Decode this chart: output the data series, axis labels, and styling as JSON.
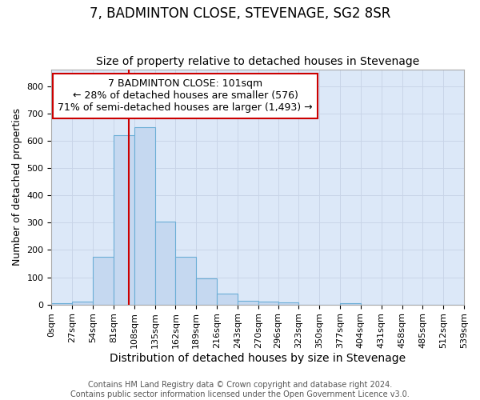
{
  "title": "7, BADMINTON CLOSE, STEVENAGE, SG2 8SR",
  "subtitle": "Size of property relative to detached houses in Stevenage",
  "xlabel": "Distribution of detached houses by size in Stevenage",
  "ylabel": "Number of detached properties",
  "footer_line1": "Contains HM Land Registry data © Crown copyright and database right 2024.",
  "footer_line2": "Contains public sector information licensed under the Open Government Licence v3.0.",
  "bar_edges": [
    0,
    27,
    54,
    81,
    108,
    135,
    162,
    189,
    216,
    243,
    270,
    296,
    323,
    350,
    377,
    404,
    431,
    458,
    485,
    512,
    539
  ],
  "bar_heights": [
    5,
    12,
    175,
    620,
    650,
    305,
    175,
    97,
    40,
    15,
    10,
    8,
    0,
    0,
    5,
    0,
    0,
    0,
    0,
    0
  ],
  "bar_color": "#c5d8f0",
  "bar_edgecolor": "#6baed6",
  "bar_linewidth": 0.8,
  "vline_x": 101,
  "vline_color": "#cc0000",
  "annotation_line1": "7 BADMINTON CLOSE: 101sqm",
  "annotation_line2": "← 28% of detached houses are smaller (576)",
  "annotation_line3": "71% of semi-detached houses are larger (1,493) →",
  "annotation_box_color": "#cc0000",
  "ylim": [
    0,
    860
  ],
  "xlim": [
    0,
    539
  ],
  "yticks": [
    0,
    100,
    200,
    300,
    400,
    500,
    600,
    700,
    800
  ],
  "xtick_labels": [
    "0sqm",
    "27sqm",
    "54sqm",
    "81sqm",
    "108sqm",
    "135sqm",
    "162sqm",
    "189sqm",
    "216sqm",
    "243sqm",
    "270sqm",
    "296sqm",
    "323sqm",
    "350sqm",
    "377sqm",
    "404sqm",
    "431sqm",
    "458sqm",
    "485sqm",
    "512sqm",
    "539sqm"
  ],
  "grid_color": "#c8d4e8",
  "plot_background": "#dce8f8",
  "fig_background": "#ffffff",
  "title_fontsize": 12,
  "subtitle_fontsize": 10,
  "ylabel_fontsize": 9,
  "xlabel_fontsize": 10,
  "tick_fontsize": 8,
  "footer_fontsize": 7,
  "annotation_fontsize": 9
}
